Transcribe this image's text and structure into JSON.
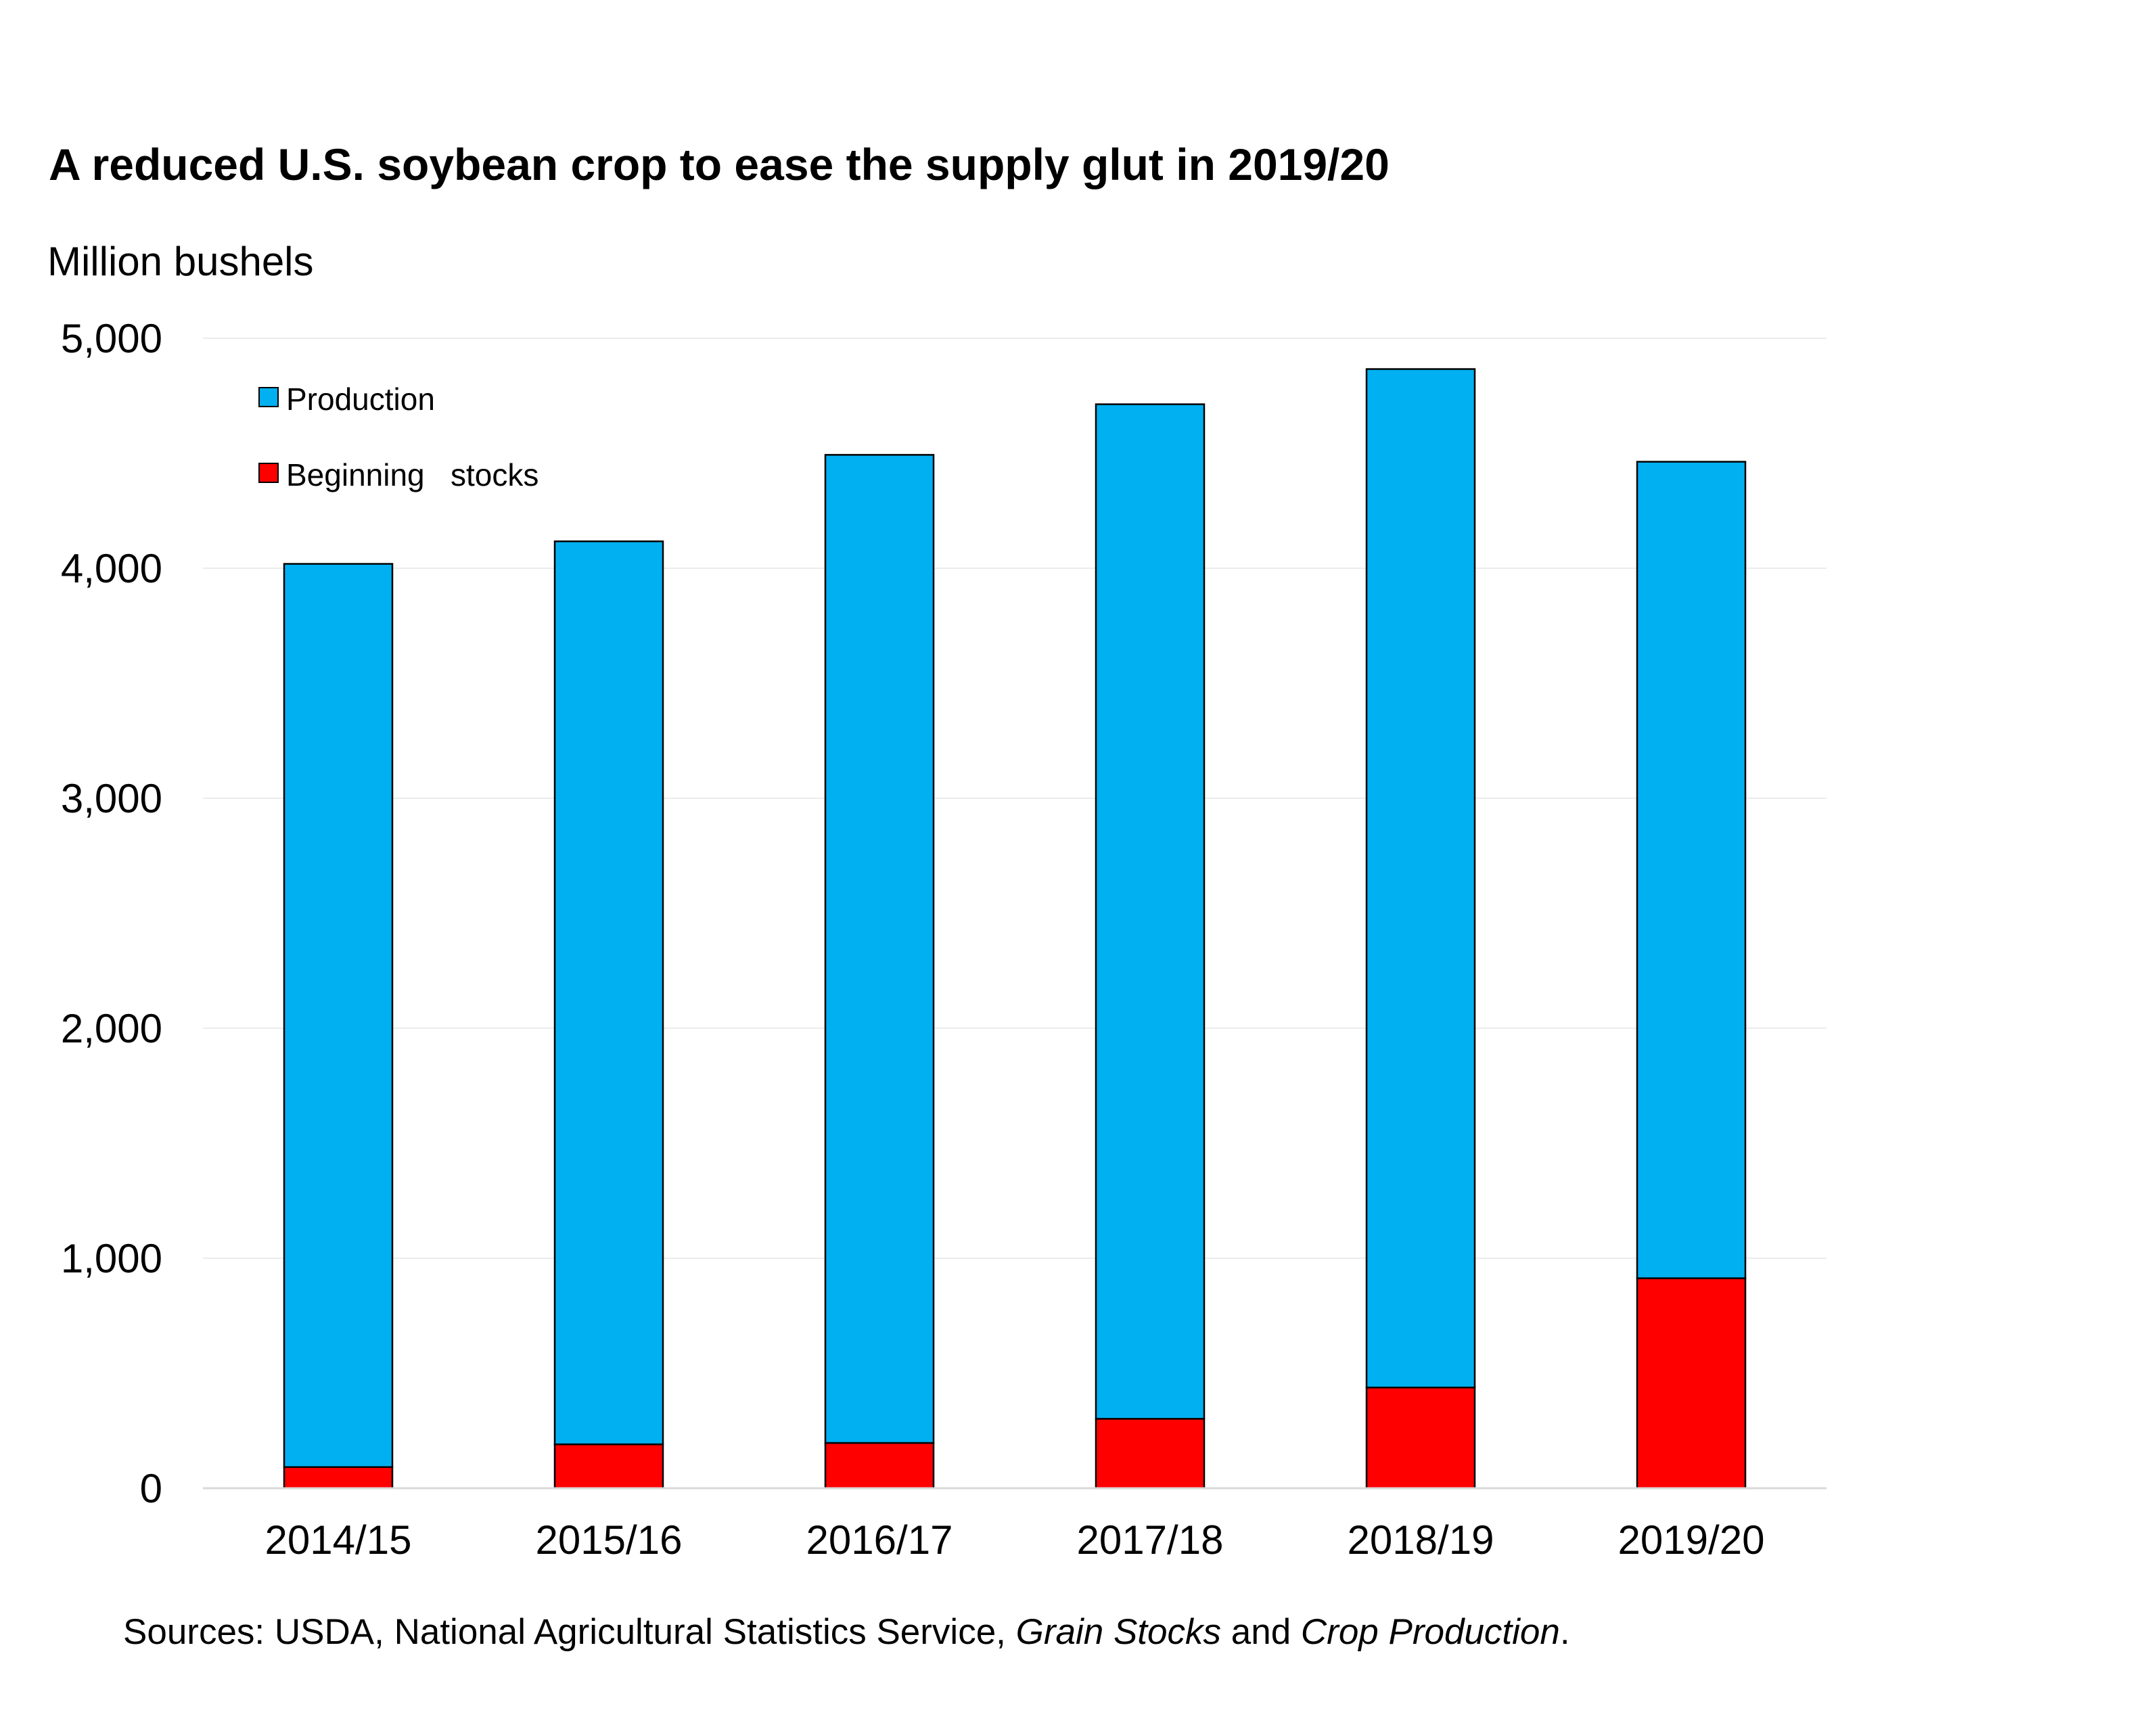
{
  "chart_data": {
    "type": "bar",
    "stacked": true,
    "title": "A reduced U.S. soybean crop to ease the supply glut in 2019/20",
    "ylabel": "Million bushels",
    "xlabel": "",
    "ylim": [
      0,
      5000
    ],
    "yticks": [
      "0",
      "1,000",
      "2,000",
      "3,000",
      "4,000",
      "5,000"
    ],
    "ytick_values": [
      0,
      1000,
      2000,
      3000,
      4000,
      5000
    ],
    "grid": true,
    "legend_position": "top-left",
    "categories": [
      "2014/15",
      "2015/16",
      "2016/17",
      "2017/18",
      "2018/19",
      "2019/20"
    ],
    "series": [
      {
        "name": "Beginning   stocks",
        "color": "#ff0000",
        "values": [
          92,
          191,
          197,
          302,
          438,
          913
        ]
      },
      {
        "name": "Production",
        "color": "#00b0f0",
        "values": [
          3927,
          3926,
          4296,
          4411,
          4428,
          3550
        ]
      }
    ],
    "source_prefix": "Sources: USDA, National Agricultural Statistics Service, ",
    "source_italic_1": "Grain Stocks",
    "source_mid": " and ",
    "source_italic_2": "Crop Production",
    "source_suffix": "."
  }
}
